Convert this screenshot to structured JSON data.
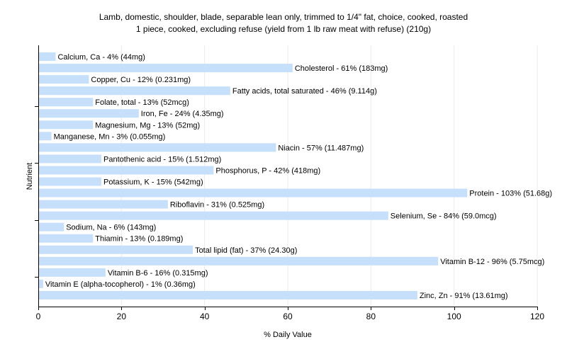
{
  "chart_data": {
    "type": "bar",
    "orientation": "horizontal",
    "title_line1": "Lamb, domestic, shoulder, blade, separable lean only, trimmed to 1/4\" fat, choice, cooked, roasted",
    "title_line2": "1 piece, cooked, excluding refuse (yield from 1 lb raw meat with refuse) (210g)",
    "xlabel": "% Daily Value",
    "ylabel": "Nutrient",
    "xlim": [
      0,
      120
    ],
    "xticks": [
      0,
      20,
      40,
      60,
      80,
      100,
      120
    ],
    "grid": true,
    "bar_color": "#c6dffb",
    "categories": [
      "Calcium, Ca",
      "Cholesterol",
      "Copper, Cu",
      "Fatty acids, total saturated",
      "Folate, total",
      "Iron, Fe",
      "Magnesium, Mg",
      "Manganese, Mn",
      "Niacin",
      "Pantothenic acid",
      "Phosphorus, P",
      "Potassium, K",
      "Protein",
      "Riboflavin",
      "Selenium, Se",
      "Sodium, Na",
      "Thiamin",
      "Total lipid (fat)",
      "Vitamin B-12",
      "Vitamin B-6",
      "Vitamin E (alpha-tocopherol)",
      "Zinc, Zn"
    ],
    "values": [
      4,
      61,
      12,
      46,
      13,
      24,
      13,
      3,
      57,
      15,
      42,
      15,
      103,
      31,
      84,
      6,
      13,
      37,
      96,
      16,
      1,
      91
    ],
    "labels": [
      "Calcium, Ca - 4% (44mg)",
      "Cholesterol - 61% (183mg)",
      "Copper, Cu - 12% (0.231mg)",
      "Fatty acids, total saturated - 46% (9.114g)",
      "Folate, total - 13% (52mcg)",
      "Iron, Fe - 24% (4.35mg)",
      "Magnesium, Mg - 13% (52mg)",
      "Manganese, Mn - 3% (0.055mg)",
      "Niacin - 57% (11.487mg)",
      "Pantothenic acid - 15% (1.512mg)",
      "Phosphorus, P - 42% (418mg)",
      "Potassium, K - 15% (542mg)",
      "Protein - 103% (51.68g)",
      "Riboflavin - 31% (0.525mg)",
      "Selenium, Se - 84% (59.0mcg)",
      "Sodium, Na - 6% (143mg)",
      "Thiamin - 13% (0.189mg)",
      "Total lipid (fat) - 37% (24.30g)",
      "Vitamin B-12 - 96% (5.75mcg)",
      "Vitamin B-6 - 16% (0.315mg)",
      "Vitamin E (alpha-tocopherol) - 1% (0.36mg)",
      "Zinc, Zn - 91% (13.61mg)"
    ]
  }
}
